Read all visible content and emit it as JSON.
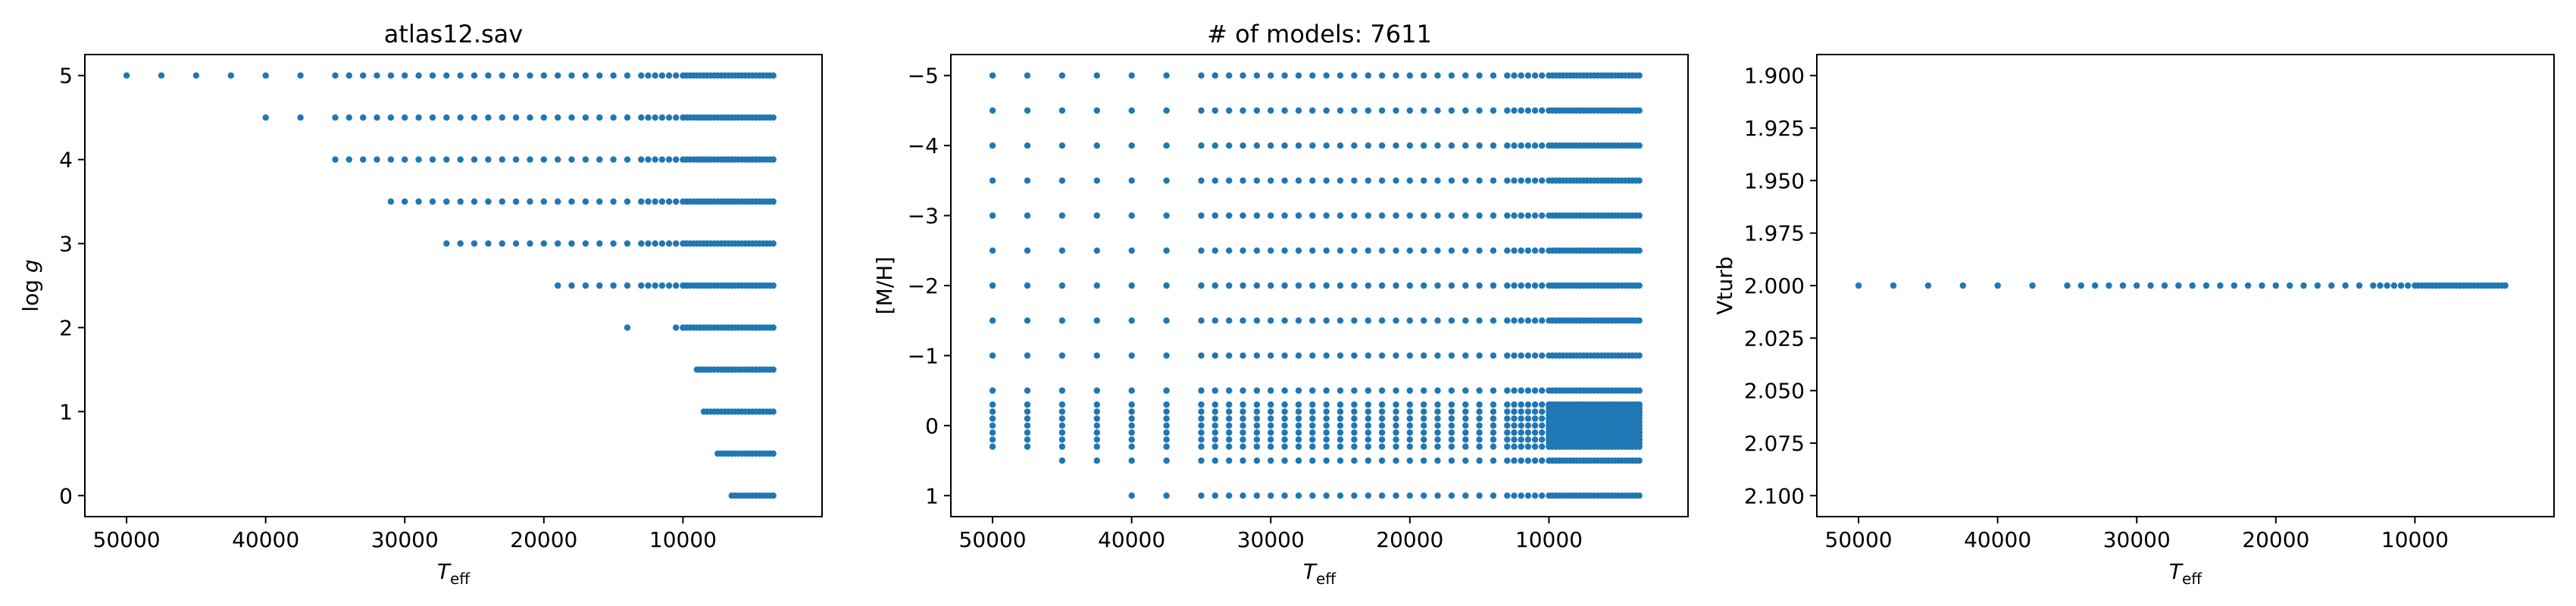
{
  "figure": {
    "background": "#ffffff",
    "marker_color": "#1f77b4"
  },
  "chart_data": [
    {
      "type": "scatter",
      "title": "atlas12.sav",
      "xlabel_main": "T",
      "xlabel_sub": "eff",
      "ylabel": "log g",
      "xlim": [
        53000,
        0
      ],
      "ylim": [
        5.25,
        -0.25
      ],
      "x_ticks": [
        50000,
        40000,
        30000,
        20000,
        10000
      ],
      "y_ticks": [
        0,
        1,
        2,
        3,
        4,
        5
      ],
      "x_tick_labels": [
        "50000",
        "40000",
        "30000",
        "20000",
        "10000"
      ],
      "y_tick_labels": [
        "0",
        "1",
        "2",
        "3",
        "4",
        "5"
      ],
      "grid": false,
      "rows": [
        {
          "y": 0.0,
          "x_dense": [
            6500,
            3500
          ]
        },
        {
          "y": 0.5,
          "x_dense": [
            7500,
            3500
          ]
        },
        {
          "y": 1.0,
          "x_dense": [
            8500,
            3500
          ]
        },
        {
          "y": 1.5,
          "x_dense": [
            9000,
            3500
          ]
        },
        {
          "y": 2.0,
          "x_sparse": [
            14000,
            10500
          ],
          "x_dense": [
            10000,
            3500
          ]
        },
        {
          "y": 2.5,
          "x_sparse": [
            19000,
            18000,
            17000,
            16000,
            15000,
            14000,
            13000,
            12500,
            12000,
            11500,
            11000,
            10500
          ],
          "x_dense": [
            10000,
            3500
          ]
        },
        {
          "y": 3.0,
          "x_sparse": [
            27000,
            26000,
            25000,
            24000,
            23000,
            22000,
            21000,
            20000,
            19000,
            18000,
            17000,
            16000,
            15000,
            14000,
            13000,
            12500,
            12000,
            11500,
            11000,
            10500
          ],
          "x_dense": [
            10000,
            3500
          ]
        },
        {
          "y": 3.5,
          "x_sparse": [
            31000,
            30000,
            29000,
            28000,
            27000,
            26000,
            25000,
            24000,
            23000,
            22000,
            21000,
            20000,
            19000,
            18000,
            17000,
            16000,
            15000,
            14000,
            13000,
            12500,
            12000,
            11500,
            11000,
            10500
          ],
          "x_dense": [
            10000,
            3500
          ]
        },
        {
          "y": 4.0,
          "x_sparse": [
            35000,
            34000,
            33000,
            32000,
            31000,
            30000,
            29000,
            28000,
            27000,
            26000,
            25000,
            24000,
            23000,
            22000,
            21000,
            20000,
            19000,
            18000,
            17000,
            16000,
            15000,
            14000,
            13000,
            12500,
            12000,
            11500,
            11000,
            10500
          ],
          "x_dense": [
            10000,
            3500
          ]
        },
        {
          "y": 4.5,
          "x_sparse": [
            40000,
            37500,
            35000,
            34000,
            33000,
            32000,
            31000,
            30000,
            29000,
            28000,
            27000,
            26000,
            25000,
            24000,
            23000,
            22000,
            21000,
            20000,
            19000,
            18000,
            17000,
            16000,
            15000,
            14000,
            13000,
            12500,
            12000,
            11500,
            11000,
            10500
          ],
          "x_dense": [
            10000,
            3500
          ]
        },
        {
          "y": 5.0,
          "x_sparse": [
            50000,
            47500,
            45000,
            42500,
            40000,
            37500,
            35000,
            34000,
            33000,
            32000,
            31000,
            30000,
            29000,
            28000,
            27000,
            26000,
            25000,
            24000,
            23000,
            22000,
            21000,
            20000,
            19000,
            18000,
            17000,
            16000,
            15000,
            14000,
            13000,
            12500,
            12000,
            11500,
            11000,
            10500
          ],
          "x_dense": [
            10000,
            3500
          ]
        }
      ]
    },
    {
      "type": "scatter",
      "title": "# of models: 7611",
      "xlabel_main": "T",
      "xlabel_sub": "eff",
      "ylabel": "[M/H]",
      "xlim": [
        53000,
        0
      ],
      "ylim": [
        -5.3,
        1.3
      ],
      "x_ticks": [
        50000,
        40000,
        30000,
        20000,
        10000
      ],
      "y_ticks": [
        1,
        0,
        -1,
        -2,
        -3,
        -4,
        -5
      ],
      "x_tick_labels": [
        "50000",
        "40000",
        "30000",
        "20000",
        "10000"
      ],
      "y_tick_labels": [
        "1",
        "0",
        "−1",
        "−2",
        "−3",
        "−4",
        "−5"
      ],
      "grid": false,
      "columns_x": [
        50000,
        47500,
        45000,
        42500,
        40000,
        37500,
        35000,
        34000,
        33000,
        32000,
        31000,
        30000,
        29000,
        28000,
        27000,
        26000,
        25000,
        24000,
        23000,
        22000,
        21000,
        20000,
        19000,
        18000,
        17000,
        16000,
        15000,
        14000,
        13000,
        12500,
        12000,
        11500,
        11000,
        10500
      ],
      "metallicities": [
        1.0,
        0.5,
        0.3,
        0.2,
        0.1,
        0.0,
        -0.1,
        -0.2,
        -0.3,
        -0.5,
        -1.0,
        -1.5,
        -2.0,
        -2.5,
        -3.0,
        -3.5,
        -4.0,
        -4.5,
        -5.0
      ],
      "dense_x": [
        10000,
        3500
      ],
      "dense_band": [
        -0.3,
        0.3
      ]
    },
    {
      "type": "scatter",
      "title": "",
      "xlabel_main": "T",
      "xlabel_sub": "eff",
      "ylabel": "Vturb",
      "xlim": [
        53000,
        0
      ],
      "ylim": [
        1.89,
        2.11
      ],
      "x_ticks": [
        50000,
        40000,
        30000,
        20000,
        10000
      ],
      "y_ticks": [
        2.1,
        2.075,
        2.05,
        2.025,
        2.0,
        1.975,
        1.95,
        1.925,
        1.9
      ],
      "x_tick_labels": [
        "50000",
        "40000",
        "30000",
        "20000",
        "10000"
      ],
      "y_tick_labels": [
        "2.100",
        "2.075",
        "2.050",
        "2.025",
        "2.000",
        "1.975",
        "1.950",
        "1.925",
        "1.900"
      ],
      "grid": false,
      "y_value": 2.0,
      "x_sparse": [
        50000,
        47500,
        45000,
        42500,
        40000,
        37500,
        35000,
        34000,
        33000,
        32000,
        31000,
        30000,
        29000,
        28000,
        27000,
        26000,
        25000,
        24000,
        23000,
        22000,
        21000,
        20000,
        19000,
        18000,
        17000,
        16000,
        15000,
        14000,
        13000,
        12500,
        12000,
        11500,
        11000,
        10500
      ],
      "x_dense": [
        10000,
        3500
      ]
    }
  ]
}
